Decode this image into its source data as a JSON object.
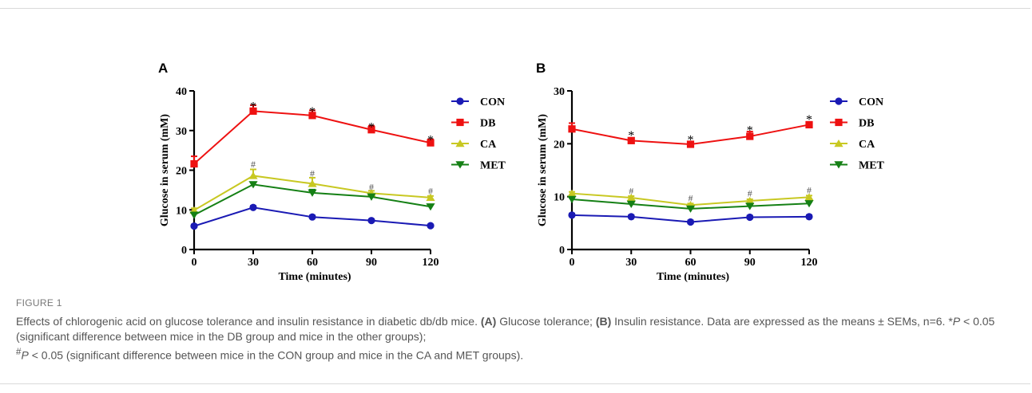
{
  "figure": {
    "label": "FIGURE 1",
    "caption": {
      "intro": "Effects of chlorogenic acid on glucose tolerance and insulin resistance in diabetic db/db mice. ",
      "a_label": "(A)",
      "a_text": " Glucose tolerance; ",
      "b_label": "(B)",
      "b_text": " Insulin resistance. Data are expressed as the means ± SEMs, n=6. ",
      "star_marker": "*",
      "p1": "P",
      "star_text": " < 0.05 (significant difference between mice in the DB group and mice in the other groups);",
      "hash_marker": "#",
      "p2": "P",
      "hash_text": " < 0.05 (significant difference between mice in the CON group and mice in the CA and MET groups)."
    }
  },
  "colors": {
    "CON": "#1a1ab4",
    "DB": "#ee1111",
    "CA": "#c8c822",
    "MET": "#158015",
    "axis": "#000000"
  },
  "chart_data": [
    {
      "panel": "A",
      "type": "line",
      "xlabel": "Time (minutes)",
      "ylabel": "Glucose in serum (mM)",
      "x": [
        0,
        30,
        60,
        90,
        120
      ],
      "xticks": [
        "0",
        "30",
        "60",
        "90",
        "120"
      ],
      "yticks": [
        "0",
        "10",
        "20",
        "30",
        "40"
      ],
      "ylim": [
        0,
        40
      ],
      "legend_position": "right",
      "series": [
        {
          "name": "CON",
          "marker": "circle",
          "values": [
            5.9,
            10.6,
            8.2,
            7.3,
            6.0
          ],
          "err": [
            0.4,
            0.4,
            0.4,
            0.3,
            0.3
          ]
        },
        {
          "name": "DB",
          "marker": "square",
          "values": [
            21.6,
            34.9,
            33.8,
            30.2,
            26.9
          ],
          "err": [
            1.9,
            1.5,
            1.3,
            1.0,
            0.9
          ]
        },
        {
          "name": "CA",
          "marker": "triangle-up",
          "values": [
            9.9,
            18.6,
            16.6,
            14.2,
            13.1
          ],
          "err": [
            0.5,
            1.6,
            1.5,
            0.6,
            0.4
          ]
        },
        {
          "name": "MET",
          "marker": "triangle-down",
          "values": [
            8.7,
            16.4,
            14.3,
            13.3,
            10.8
          ],
          "err": [
            0.5,
            0.6,
            0.8,
            0.6,
            0.5
          ]
        }
      ],
      "annotations": [
        {
          "text": "*",
          "x": 30,
          "y": 36.7
        },
        {
          "text": "*",
          "x": 60,
          "y": 35.4
        },
        {
          "text": "*",
          "x": 90,
          "y": 31.5
        },
        {
          "text": "*",
          "x": 120,
          "y": 28.2
        },
        {
          "text": "#",
          "x": 30,
          "y": 21.5
        },
        {
          "text": "#",
          "x": 60,
          "y": 19.2
        },
        {
          "text": "#",
          "x": 90,
          "y": 15.8
        },
        {
          "text": "#",
          "x": 120,
          "y": 14.8
        }
      ]
    },
    {
      "panel": "B",
      "type": "line",
      "xlabel": "Time (minutes)",
      "ylabel": "Glucose in serum (mM)",
      "x": [
        0,
        30,
        60,
        90,
        120
      ],
      "xticks": [
        "0",
        "30",
        "60",
        "90",
        "120"
      ],
      "yticks": [
        "0",
        "10",
        "20",
        "30"
      ],
      "ylim": [
        0,
        30
      ],
      "legend_position": "right",
      "series": [
        {
          "name": "CON",
          "marker": "circle",
          "values": [
            6.5,
            6.2,
            5.2,
            6.1,
            6.2
          ],
          "err": [
            0.3,
            0.3,
            0.3,
            0.3,
            0.3
          ]
        },
        {
          "name": "DB",
          "marker": "square",
          "values": [
            22.8,
            20.6,
            19.9,
            21.4,
            23.6
          ],
          "err": [
            1.1,
            0.5,
            0.4,
            0.9,
            0.5
          ]
        },
        {
          "name": "CA",
          "marker": "triangle-up",
          "values": [
            10.6,
            9.8,
            8.4,
            9.2,
            9.9
          ],
          "err": [
            0.3,
            0.3,
            0.3,
            0.3,
            0.3
          ]
        },
        {
          "name": "MET",
          "marker": "triangle-down",
          "values": [
            9.5,
            8.6,
            7.7,
            8.2,
            8.7
          ],
          "err": [
            0.3,
            0.3,
            0.3,
            0.3,
            0.3
          ]
        }
      ],
      "annotations": [
        {
          "text": "*",
          "x": 30,
          "y": 22.0
        },
        {
          "text": "*",
          "x": 60,
          "y": 21.2
        },
        {
          "text": "*",
          "x": 90,
          "y": 23.0
        },
        {
          "text": "*",
          "x": 120,
          "y": 25.0
        },
        {
          "text": "#",
          "x": 30,
          "y": 11.1
        },
        {
          "text": "#",
          "x": 60,
          "y": 9.7
        },
        {
          "text": "#",
          "x": 90,
          "y": 10.6
        },
        {
          "text": "#",
          "x": 120,
          "y": 11.2
        }
      ]
    }
  ]
}
